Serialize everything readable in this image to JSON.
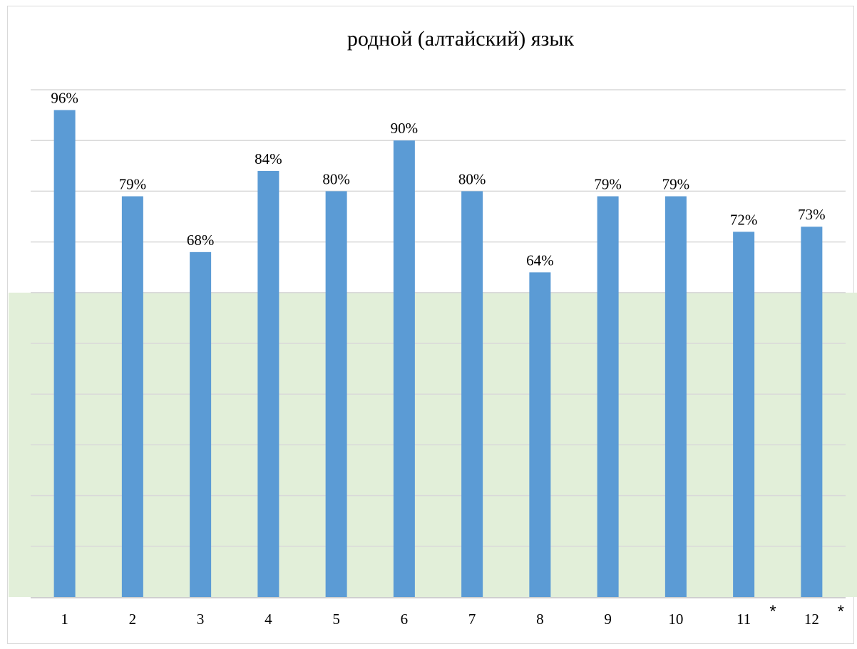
{
  "chart_data": {
    "type": "bar",
    "title": "родной (алтайский) язык",
    "xlabel": "",
    "ylabel": "",
    "categories": [
      "1",
      "2",
      "3",
      "4",
      "5",
      "6",
      "7",
      "8",
      "9",
      "10",
      "11",
      "12"
    ],
    "values": [
      96,
      79,
      68,
      84,
      80,
      90,
      80,
      64,
      79,
      79,
      72,
      73
    ],
    "value_labels": [
      "96%",
      "79%",
      "68%",
      "84%",
      "80%",
      "90%",
      "80%",
      "64%",
      "79%",
      "79%",
      "72%",
      "73%"
    ],
    "ylim": [
      0,
      100
    ],
    "gridlines": true,
    "y_tick_labels_shown": false,
    "highlight_band": [
      0,
      60
    ],
    "markers": [
      {
        "after_category": "11",
        "text": "*"
      },
      {
        "after_category": "12",
        "text": "*"
      }
    ],
    "colors": {
      "bar": "#5b9bd5",
      "band": "#e2efd9",
      "grid": "#d9d9d9",
      "axis": "#bfbfbf"
    }
  }
}
